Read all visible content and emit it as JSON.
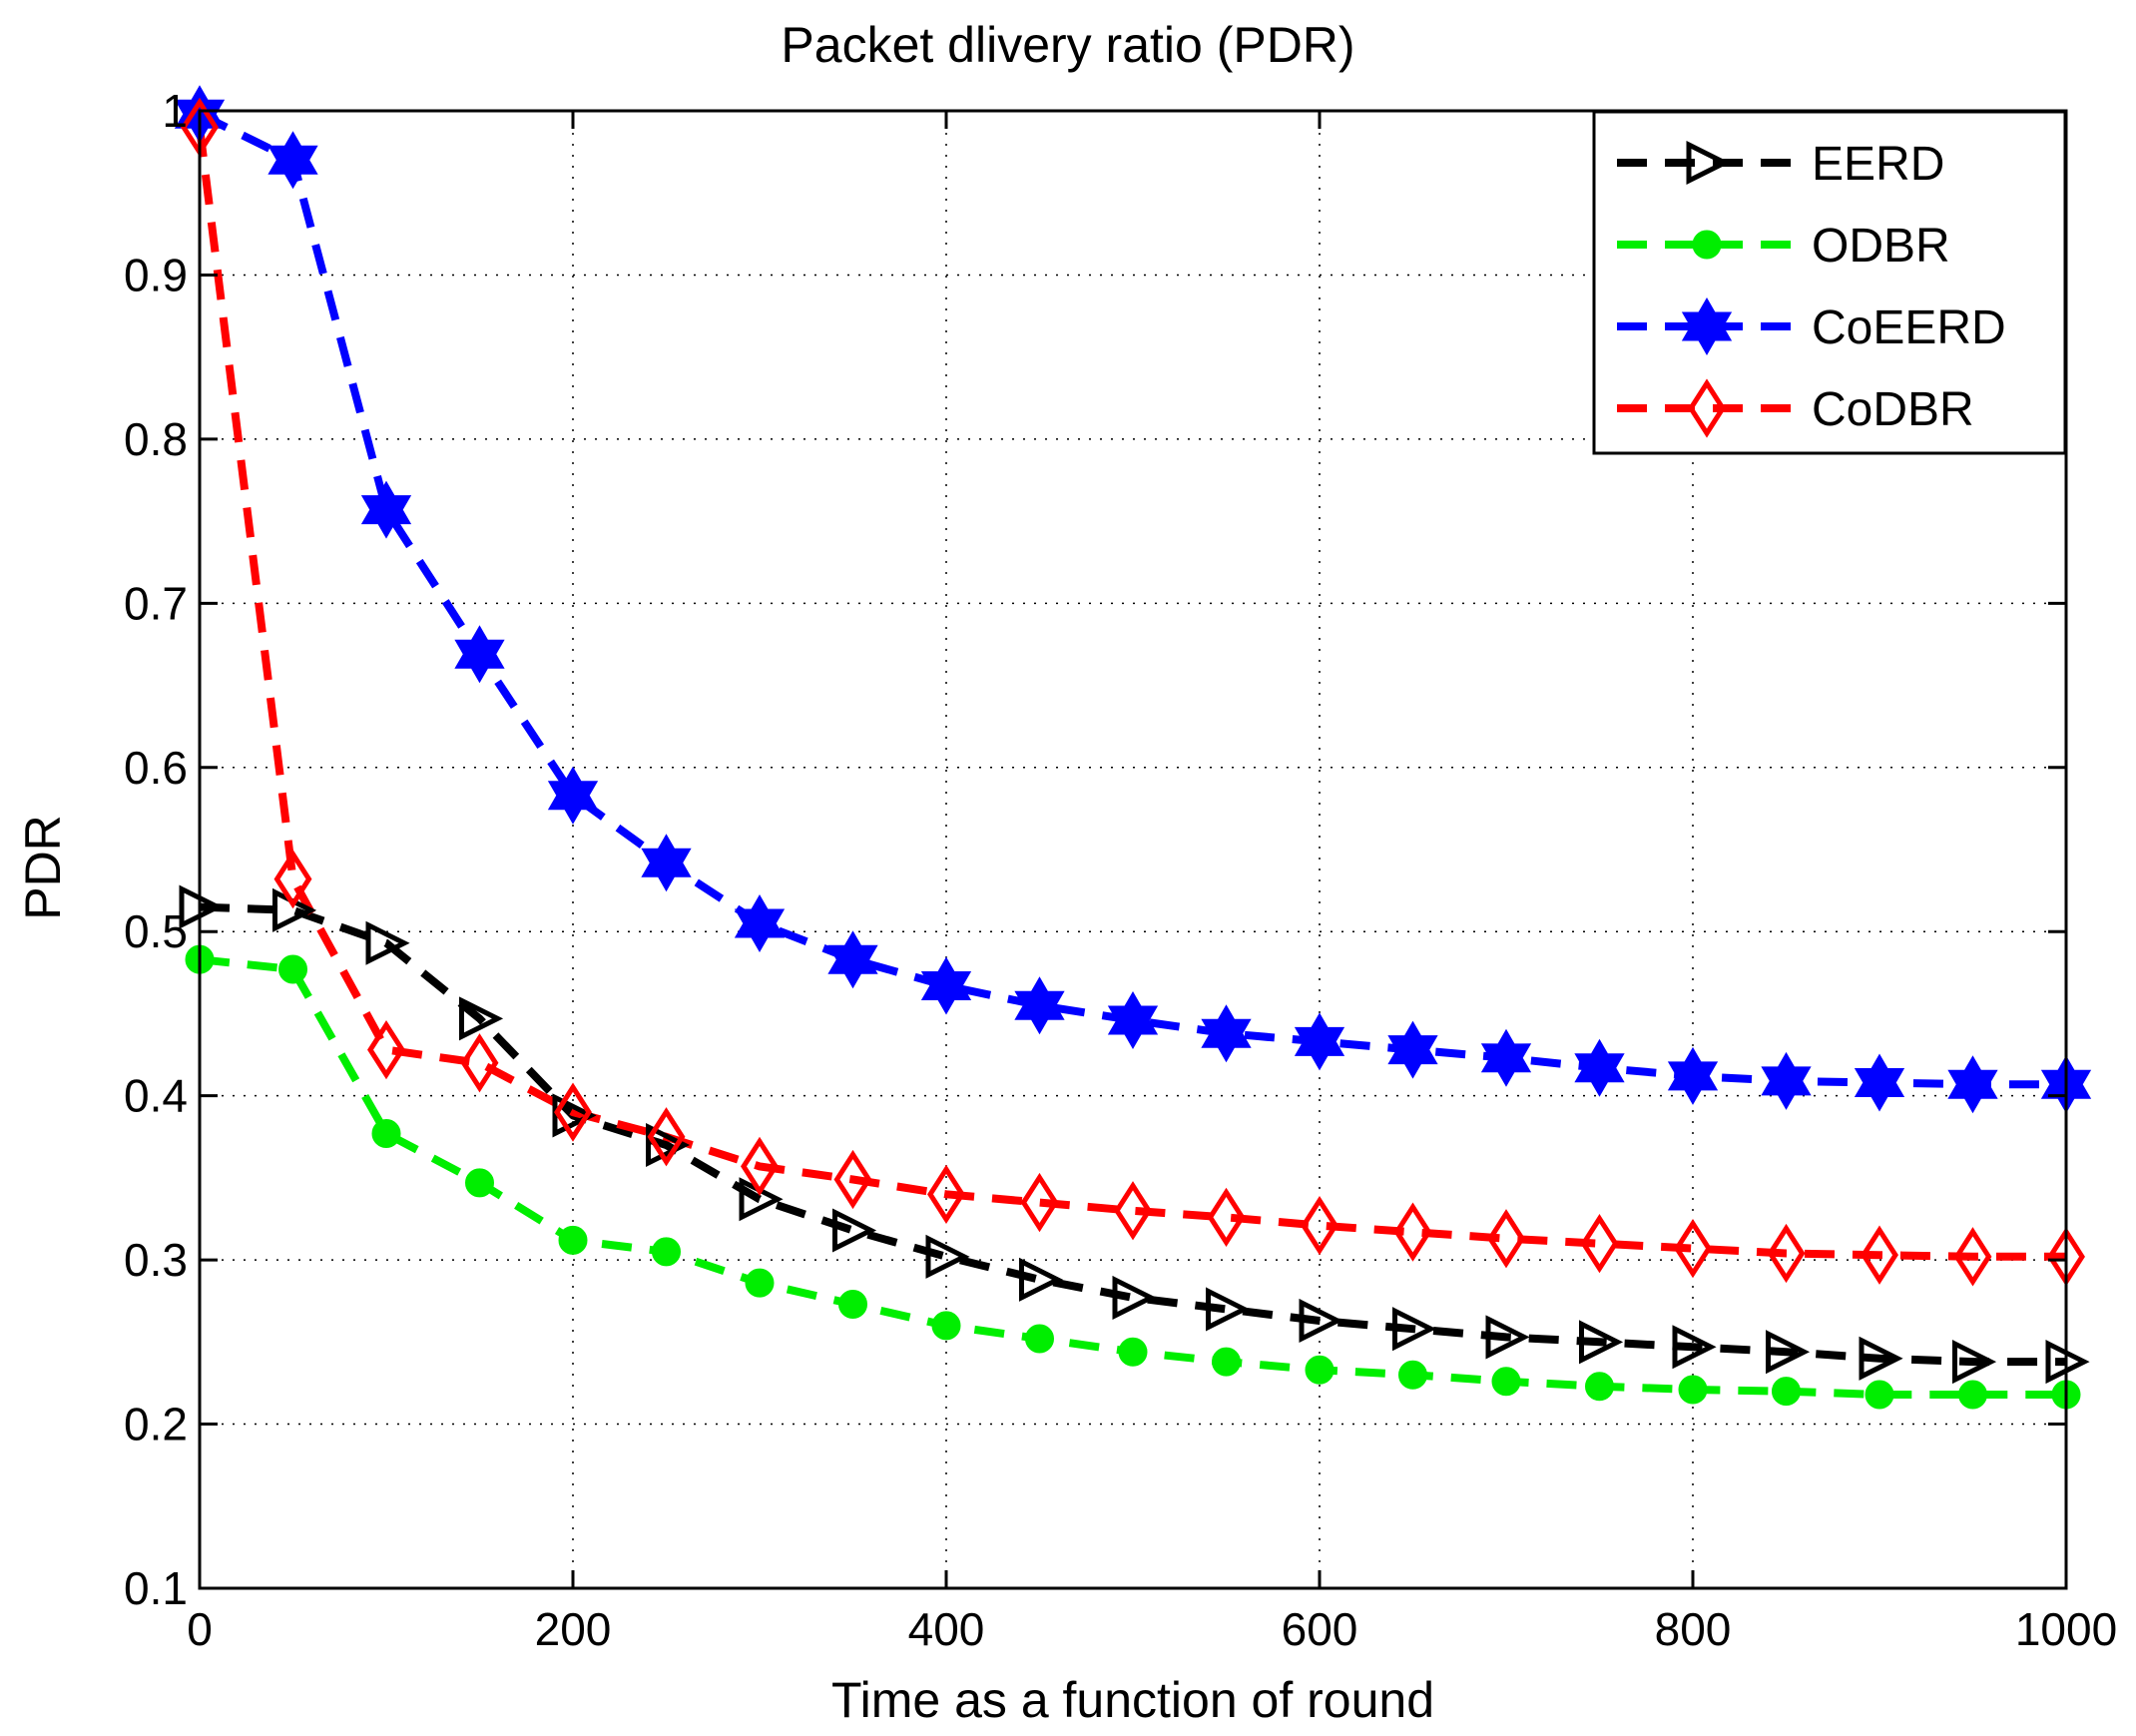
{
  "chart_data": {
    "type": "line",
    "title": "Packet dlivery ratio (PDR)",
    "xlabel": "Time as a function of round",
    "ylabel": "PDR",
    "xlim": [
      0,
      1000
    ],
    "ylim": [
      0.1,
      1
    ],
    "xticks": [
      0,
      200,
      400,
      600,
      800,
      1000
    ],
    "yticks": [
      0.1,
      0.2,
      0.3,
      0.4,
      0.5,
      0.6,
      0.7,
      0.8,
      0.9,
      1
    ],
    "xtick_labels": [
      "0",
      "200",
      "400",
      "600",
      "800",
      "1000"
    ],
    "ytick_labels": [
      "0.1",
      "0.2",
      "0.3",
      "0.4",
      "0.5",
      "0.6",
      "0.7",
      "0.8",
      "0.9",
      "1"
    ],
    "grid": true,
    "legend_position": "top-right",
    "x": [
      0,
      50,
      100,
      150,
      200,
      250,
      300,
      350,
      400,
      450,
      500,
      550,
      600,
      650,
      700,
      750,
      800,
      850,
      900,
      950,
      1000
    ],
    "series": [
      {
        "name": "EERD",
        "color": "#000000",
        "marker": "triangle-right",
        "values": [
          0.515,
          0.513,
          0.493,
          0.447,
          0.388,
          0.37,
          0.337,
          0.318,
          0.302,
          0.288,
          0.277,
          0.27,
          0.263,
          0.258,
          0.253,
          0.25,
          0.247,
          0.244,
          0.24,
          0.238,
          0.238
        ]
      },
      {
        "name": "ODBR",
        "color": "#00ee00",
        "marker": "circle",
        "values": [
          0.483,
          0.477,
          0.377,
          0.347,
          0.312,
          0.305,
          0.286,
          0.273,
          0.26,
          0.252,
          0.244,
          0.238,
          0.233,
          0.23,
          0.226,
          0.223,
          0.221,
          0.22,
          0.218,
          0.218,
          0.218
        ]
      },
      {
        "name": "CoEERD",
        "color": "#0000ff",
        "marker": "hexagram",
        "values": [
          0.998,
          0.97,
          0.757,
          0.669,
          0.583,
          0.542,
          0.505,
          0.483,
          0.467,
          0.455,
          0.446,
          0.438,
          0.433,
          0.428,
          0.423,
          0.417,
          0.412,
          0.409,
          0.408,
          0.407,
          0.407
        ]
      },
      {
        "name": "CoDBR",
        "color": "#ff0000",
        "marker": "diamond",
        "values": [
          0.99,
          0.532,
          0.428,
          0.42,
          0.39,
          0.375,
          0.357,
          0.349,
          0.34,
          0.335,
          0.33,
          0.326,
          0.321,
          0.317,
          0.313,
          0.31,
          0.307,
          0.304,
          0.303,
          0.302,
          0.302
        ]
      }
    ]
  }
}
